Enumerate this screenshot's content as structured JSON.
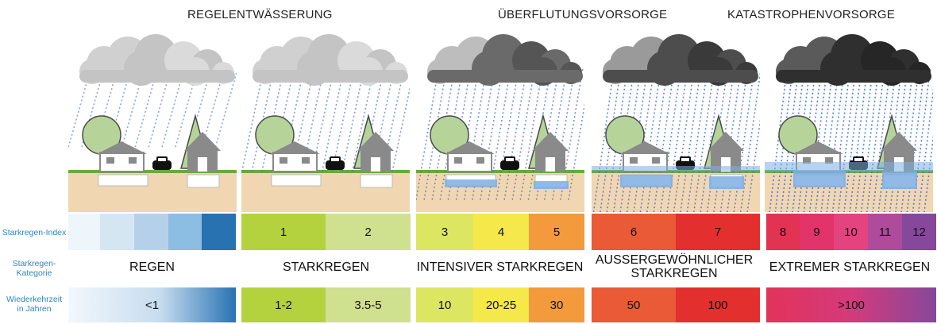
{
  "headers": {
    "regular": "REGELENTWÄSSERUNG",
    "flood": "ÜBERFLUTUNGSVORSORGE",
    "disaster": "KATASTROPHENVORSORGE"
  },
  "row_labels": {
    "index": "Starkregen-Index",
    "category_line1": "Starkregen-",
    "category_line2": "Kategorie",
    "return_line1": "Wiederkehrzeit",
    "return_line2": "in Jahren"
  },
  "index_cells": [
    {
      "label": "",
      "color": "#eef5fb"
    },
    {
      "label": "",
      "color": "#d5e6f3"
    },
    {
      "label": "",
      "color": "#b5d1ea"
    },
    {
      "label": "",
      "color": "#8cbde3"
    },
    {
      "label": "",
      "color": "#2872b2"
    },
    {
      "label": "1",
      "color": "#b4d23e"
    },
    {
      "label": "2",
      "color": "#cfe08e"
    },
    {
      "label": "3",
      "color": "#dde660"
    },
    {
      "label": "4",
      "color": "#f5e84a"
    },
    {
      "label": "5",
      "color": "#f29a3c"
    },
    {
      "label": "6",
      "color": "#ea5a37"
    },
    {
      "label": "7",
      "color": "#e42f2f"
    },
    {
      "label": "8",
      "color": "#e23352"
    },
    {
      "label": "9",
      "color": "#e2336a"
    },
    {
      "label": "10",
      "color": "#e5437f"
    },
    {
      "label": "11",
      "color": "#b04a9a"
    },
    {
      "label": "12",
      "color": "#86489b"
    }
  ],
  "categories": {
    "rain": "REGEN",
    "heavy": "STARKREGEN",
    "intense": "INTENSIVER STARKREGEN",
    "exceptional_line1": "AUSSERGEWÖHNLICHER",
    "exceptional_line2": "STARKREGEN",
    "extreme": "EXTREMER STARKREGEN"
  },
  "return_periods": {
    "rain": "<1",
    "heavy_a": "1-2",
    "heavy_b": "3.5-5",
    "intense_a": "10",
    "intense_b": "20-25",
    "intense_c": "30",
    "exceptional_a": "50",
    "exceptional_b": "100",
    "extreme": ">100"
  },
  "colors": {
    "sky_light": "#dcdcdc",
    "sky_dark": "#3a3a3a",
    "rain": "#4a73d9",
    "soil": "#f1d6b2",
    "grass": "#6aa93c",
    "tree": "#b6d49a",
    "house": "#8a8a8a",
    "water": "#7eaee3"
  },
  "scenes": [
    {
      "rain_intensity": 1,
      "water_level": 0,
      "cloud_tone": "light"
    },
    {
      "rain_intensity": 2,
      "water_level": 0,
      "cloud_tone": "light"
    },
    {
      "rain_intensity": 3,
      "water_level": 1,
      "cloud_tone": "medium"
    },
    {
      "rain_intensity": 4,
      "water_level": 2,
      "cloud_tone": "dark"
    },
    {
      "rain_intensity": 5,
      "water_level": 3,
      "cloud_tone": "darkest"
    }
  ]
}
